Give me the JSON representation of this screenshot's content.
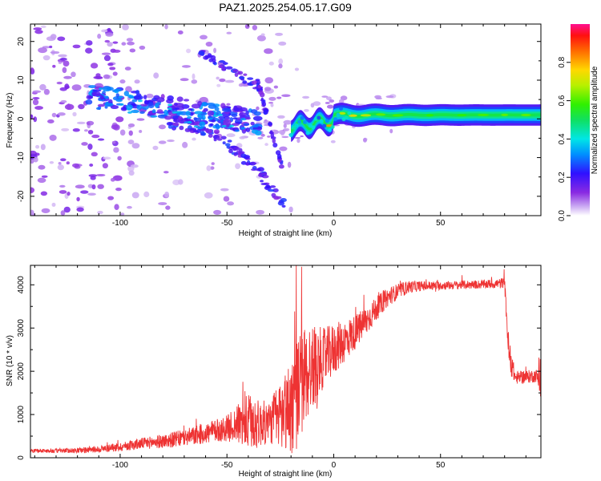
{
  "title": "PAZ1.2025.254.05.17.G09",
  "chart_data": [
    {
      "type": "heatmap",
      "name": "spectrogram",
      "xlabel": "Height of straight line (km)",
      "ylabel": "Frequency (Hz)",
      "xlim": [
        -142,
        97
      ],
      "ylim": [
        -25,
        24.5
      ],
      "xticks": [
        -100,
        -50,
        0,
        50
      ],
      "xtick_labels": [
        "-100",
        "-50",
        "0",
        "50"
      ],
      "yticks": [
        20,
        10,
        0,
        -10,
        -20
      ],
      "ytick_labels": [
        "20",
        "10",
        "0",
        "-10",
        "-20"
      ],
      "colorbar": {
        "label": "Normalized spectral amplitude",
        "range": [
          0,
          1
        ],
        "ticks": [
          0,
          0.2,
          0.4,
          0.6,
          0.8
        ],
        "tick_labels": [
          "0.0",
          "0.2",
          "0.4",
          "0.6",
          "0.8"
        ],
        "colormap": "rainbow (white-violet-blue-cyan-green-yellow-orange-red-pink)"
      },
      "features": [
        {
          "name": "main carrier line",
          "x_range": [
            -20,
            97
          ],
          "frequency_hz": 1,
          "amplitude": 0.45
        },
        {
          "name": "multipath band",
          "x_range": [
            -110,
            -40
          ],
          "frequency_hz": [
            6,
            -2
          ],
          "amplitude": 0.3
        },
        {
          "name": "descending branch",
          "x_range": [
            -75,
            -22
          ],
          "frequency_hz": [
            0,
            -22
          ],
          "amplitude": 0.25
        },
        {
          "name": "upper branch",
          "x_range": [
            -60,
            -35
          ],
          "frequency_hz": [
            17,
            8
          ],
          "amplitude": 0.25
        }
      ]
    },
    {
      "type": "line",
      "name": "snr",
      "xlabel": "Height of straight line (km)",
      "ylabel": "SNR (10 * v/v)",
      "xlim": [
        -142,
        97
      ],
      "ylim": [
        0,
        4450
      ],
      "xticks": [
        -100,
        -50,
        0,
        50
      ],
      "xtick_labels": [
        "-100",
        "-50",
        "0",
        "50"
      ],
      "yticks": [
        0,
        1000,
        2000,
        3000,
        4000
      ],
      "ytick_labels": [
        "0",
        "1000",
        "2000",
        "3000",
        "4000"
      ],
      "color": "#ee3333",
      "series": [
        {
          "name": "SNR",
          "x": [
            -142,
            -130,
            -120,
            -110,
            -100,
            -90,
            -80,
            -70,
            -60,
            -50,
            -45,
            -40,
            -35,
            -30,
            -25,
            -22,
            -20,
            -17,
            -15,
            -12,
            -10,
            -5,
            0,
            5,
            10,
            15,
            20,
            25,
            30,
            35,
            40,
            50,
            60,
            70,
            78,
            80,
            82,
            85,
            90,
            95,
            97
          ],
          "y": [
            160,
            160,
            170,
            200,
            250,
            330,
            380,
            460,
            560,
            680,
            780,
            800,
            780,
            820,
            1000,
            1100,
            1200,
            1500,
            1750,
            2000,
            2100,
            2300,
            2500,
            2700,
            2900,
            3150,
            3450,
            3700,
            3850,
            3950,
            3970,
            3980,
            4000,
            4010,
            4030,
            4060,
            2400,
            1850,
            1870,
            1900,
            1650
          ],
          "noise_amplitude": [
            40,
            50,
            60,
            80,
            100,
            130,
            160,
            200,
            240,
            300,
            450,
            700,
            550,
            500,
            800,
            1000,
            1200,
            1300,
            1250,
            1150,
            1000,
            700,
            600,
            500,
            400,
            350,
            280,
            220,
            180,
            150,
            120,
            100,
            100,
            100,
            120,
            120,
            400,
            150,
            150,
            150,
            300
          ]
        }
      ]
    }
  ]
}
